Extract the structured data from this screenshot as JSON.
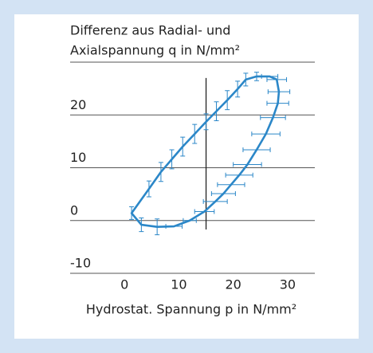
{
  "chart_data": {
    "type": "line",
    "y_label": [
      "Differenz aus Radial- und",
      "Axialspannung q in N/mm²"
    ],
    "x_label": "Hydrostat. Spannung p in N/mm²",
    "xlim": [
      -10,
      35
    ],
    "ylim": [
      -10,
      30
    ],
    "xticks": [
      0,
      10,
      20,
      30
    ],
    "yticks": [
      -10,
      0,
      10,
      20
    ],
    "grid": true,
    "marker_line": {
      "x": 15,
      "y": [
        -1.7,
        27
      ]
    },
    "series": [
      {
        "color": "#2b87c8",
        "x": [
          1.3,
          3.1,
          6.0,
          9.1,
          12.0,
          14.7,
          16.7,
          18.2,
          19.6,
          21.1,
          22.6,
          24.3,
          26.0,
          27.3,
          28.2,
          28.4,
          28.0,
          26.7,
          24.3,
          22.3,
          20.8,
          18.9,
          16.9,
          15.0,
          12.9,
          10.7,
          8.7,
          6.7,
          4.5
        ],
        "values": [
          1.4,
          -0.8,
          -1.2,
          -1.1,
          0,
          1.7,
          3.6,
          5.1,
          6.8,
          8.6,
          10.6,
          13.4,
          16.4,
          19.5,
          22.2,
          24.4,
          26.7,
          27.3,
          27.3,
          26.7,
          24.9,
          22.8,
          20.7,
          18.7,
          16.4,
          14.0,
          11.6,
          9.2,
          6.0
        ],
        "xerr": [
          null,
          null,
          null,
          1.5,
          1.2,
          1.8,
          2.2,
          2.2,
          2.5,
          2.5,
          2.6,
          2.5,
          2.6,
          2.3,
          2.0,
          2.0,
          1.8,
          1.5,
          null,
          null,
          null,
          null,
          null,
          null,
          null,
          null,
          null,
          null,
          null
        ],
        "yerr": [
          1.2,
          1.3,
          1.5,
          null,
          null,
          null,
          null,
          null,
          null,
          null,
          null,
          null,
          null,
          null,
          null,
          null,
          null,
          null,
          0.8,
          1.2,
          1.5,
          1.8,
          1.8,
          1.5,
          1.8,
          1.8,
          1.8,
          1.8,
          1.5
        ]
      }
    ]
  }
}
